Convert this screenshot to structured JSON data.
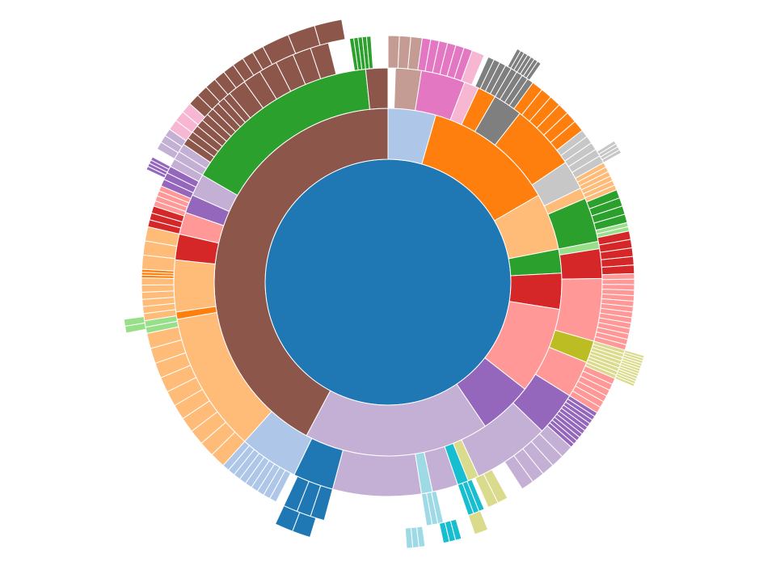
{
  "chart_data": {
    "type": "sunburst",
    "title": "",
    "palette": {
      "blue": "#1f77b4",
      "lightblue": "#aec7e8",
      "orange": "#ff7f0e",
      "lightorange": "#ffbb78",
      "green": "#2ca02c",
      "lightgreen": "#98df8a",
      "red": "#d62728",
      "pink": "#ff9896",
      "purple": "#9467bd",
      "lavender": "#c5b0d5",
      "brown": "#8c564b",
      "tan": "#c49c94",
      "magenta": "#e377c2",
      "lightpink": "#f7b6d2",
      "gray": "#7f7f7f",
      "lightgray": "#c7c7c7",
      "olive": "#bcbd22",
      "lightolive": "#dbdb8d",
      "cyan": "#17becf",
      "lightcyan": "#9edae5"
    },
    "root": {
      "name": "",
      "color": "blue"
    },
    "level1": [
      {
        "name": "",
        "start": 0,
        "end": 16,
        "color": "lightblue"
      },
      {
        "name": "",
        "start": 16,
        "end": 60,
        "color": "orange"
      },
      {
        "name": "",
        "start": 60,
        "end": 79,
        "color": "lightorange"
      },
      {
        "name": "",
        "start": 79,
        "end": 87,
        "color": "green"
      },
      {
        "name": "",
        "start": 87,
        "end": 99,
        "color": "red"
      },
      {
        "name": "",
        "start": 99,
        "end": 128,
        "color": "pink"
      },
      {
        "name": "",
        "start": 128,
        "end": 146,
        "color": "purple"
      },
      {
        "name": "",
        "start": 146,
        "end": 208,
        "color": "lavender"
      },
      {
        "name": "",
        "start": 208,
        "end": 360,
        "color": "brown"
      }
    ],
    "level2": [
      {
        "start": 2,
        "end": 9,
        "color": "tan"
      },
      {
        "start": 9,
        "end": 21,
        "color": "magenta"
      },
      {
        "start": 21,
        "end": 25,
        "color": "lightpink"
      },
      {
        "start": 25,
        "end": 30,
        "color": "orange"
      },
      {
        "start": 30,
        "end": 38,
        "color": "gray"
      },
      {
        "start": 38,
        "end": 56,
        "color": "orange"
      },
      {
        "start": 56,
        "end": 64,
        "color": "lightgray"
      },
      {
        "start": 64,
        "end": 67,
        "color": "lightorange"
      },
      {
        "start": 67,
        "end": 79,
        "color": "green"
      },
      {
        "start": 79,
        "end": 81,
        "color": "lightgreen"
      },
      {
        "start": 81,
        "end": 89,
        "color": "red"
      },
      {
        "start": 89,
        "end": 106,
        "color": "pink"
      },
      {
        "start": 106,
        "end": 112,
        "color": "olive"
      },
      {
        "start": 112,
        "end": 122,
        "color": "pink"
      },
      {
        "start": 122,
        "end": 134,
        "color": "purple"
      },
      {
        "start": 134,
        "end": 155,
        "color": "lavender"
      },
      {
        "start": 155,
        "end": 158,
        "color": "lightolive"
      },
      {
        "start": 158,
        "end": 161,
        "color": "cyan"
      },
      {
        "start": 161,
        "end": 168,
        "color": "lavender"
      },
      {
        "start": 168,
        "end": 171,
        "color": "lightcyan"
      },
      {
        "start": 171,
        "end": 195,
        "color": "lavender"
      },
      {
        "start": 195,
        "end": 206,
        "color": "blue"
      },
      {
        "start": 206,
        "end": 222,
        "color": "lightblue"
      },
      {
        "start": 222,
        "end": 260,
        "color": "lightorange"
      },
      {
        "start": 260,
        "end": 262,
        "color": "orange"
      },
      {
        "start": 262,
        "end": 276,
        "color": "lightorange"
      },
      {
        "start": 276,
        "end": 283,
        "color": "red"
      },
      {
        "start": 283,
        "end": 289,
        "color": "pink"
      },
      {
        "start": 289,
        "end": 294,
        "color": "purple"
      },
      {
        "start": 294,
        "end": 300,
        "color": "lavender"
      },
      {
        "start": 300,
        "end": 354,
        "color": "green"
      },
      {
        "start": 354,
        "end": 360,
        "color": "brown"
      }
    ],
    "level3": [
      {
        "start": 0,
        "end": 8,
        "color": "tan",
        "slices": 3
      },
      {
        "start": 8,
        "end": 20,
        "color": "magenta",
        "slices": 6
      },
      {
        "start": 20,
        "end": 23,
        "color": "lightpink",
        "slices": 1
      },
      {
        "start": 24,
        "end": 36,
        "color": "gray",
        "slices": 8
      },
      {
        "start": 36,
        "end": 52,
        "color": "orange",
        "slices": 6
      },
      {
        "start": 52,
        "end": 61,
        "color": "lightgray",
        "slices": 5
      },
      {
        "start": 61,
        "end": 68,
        "color": "lightorange",
        "slices": 6
      },
      {
        "start": 68,
        "end": 76,
        "color": "green",
        "slices": 4
      },
      {
        "start": 76,
        "end": 78,
        "color": "lightgreen",
        "slices": 2
      },
      {
        "start": 78,
        "end": 88,
        "color": "red",
        "slices": 5
      },
      {
        "start": 88,
        "end": 106,
        "color": "pink",
        "slices": 14
      },
      {
        "start": 106,
        "end": 113,
        "color": "lightolive",
        "slices": 8
      },
      {
        "start": 113,
        "end": 122,
        "color": "pink",
        "slices": 6
      },
      {
        "start": 122,
        "end": 132,
        "color": "purple",
        "slices": 10
      },
      {
        "start": 132,
        "end": 147,
        "color": "lavender",
        "slices": 5
      },
      {
        "start": 151,
        "end": 156,
        "color": "lightolive",
        "slices": 2
      },
      {
        "start": 157,
        "end": 161,
        "color": "cyan",
        "slices": 3
      },
      {
        "start": 167,
        "end": 171,
        "color": "lightcyan",
        "slices": 3
      },
      {
        "start": 195,
        "end": 205,
        "color": "blue",
        "slices": 3
      },
      {
        "start": 207,
        "end": 222,
        "color": "lightblue",
        "slices": 9
      },
      {
        "start": 222,
        "end": 258,
        "color": "lightorange",
        "slices": 10
      },
      {
        "start": 258,
        "end": 261,
        "color": "lightgreen",
        "slices": 2
      },
      {
        "start": 261,
        "end": 271,
        "color": "lightorange",
        "slices": 6
      },
      {
        "start": 271,
        "end": 273,
        "color": "orange",
        "slices": 3
      },
      {
        "start": 273,
        "end": 283,
        "color": "lightorange",
        "slices": 3
      },
      {
        "start": 283,
        "end": 288,
        "color": "red",
        "slices": 3
      },
      {
        "start": 288,
        "end": 293,
        "color": "pink",
        "slices": 4
      },
      {
        "start": 293,
        "end": 298,
        "color": "purple",
        "slices": 3
      },
      {
        "start": 298,
        "end": 304,
        "color": "lavender",
        "slices": 3
      },
      {
        "start": 304,
        "end": 320,
        "color": "brown",
        "slices": 9
      },
      {
        "start": 320,
        "end": 346,
        "color": "brown",
        "slices": 6
      },
      {
        "start": 351,
        "end": 356,
        "color": "green",
        "slices": 5
      }
    ],
    "level4": [
      {
        "start": 29,
        "end": 35,
        "color": "gray",
        "slices": 7
      },
      {
        "start": 58,
        "end": 61,
        "color": "lightgray",
        "slices": 4
      },
      {
        "start": 106,
        "end": 113,
        "color": "lightolive",
        "slices": 12
      },
      {
        "start": 158,
        "end": 161,
        "color": "lightolive",
        "slices": 1
      },
      {
        "start": 164,
        "end": 168,
        "color": "cyan",
        "slices": 3
      },
      {
        "start": 172,
        "end": 176,
        "color": "lightcyan",
        "slices": 3
      },
      {
        "start": 197,
        "end": 205,
        "color": "blue",
        "slices": 2
      },
      {
        "start": 259,
        "end": 262,
        "color": "lightgreen",
        "slices": 2
      },
      {
        "start": 295,
        "end": 298,
        "color": "purple",
        "slices": 4
      },
      {
        "start": 300,
        "end": 305,
        "color": "lavender",
        "slices": 3
      },
      {
        "start": 305,
        "end": 312,
        "color": "lightpink",
        "slices": 3
      },
      {
        "start": 312,
        "end": 332,
        "color": "brown",
        "slices": 8
      },
      {
        "start": 332,
        "end": 350,
        "color": "brown",
        "slices": 3
      }
    ]
  }
}
